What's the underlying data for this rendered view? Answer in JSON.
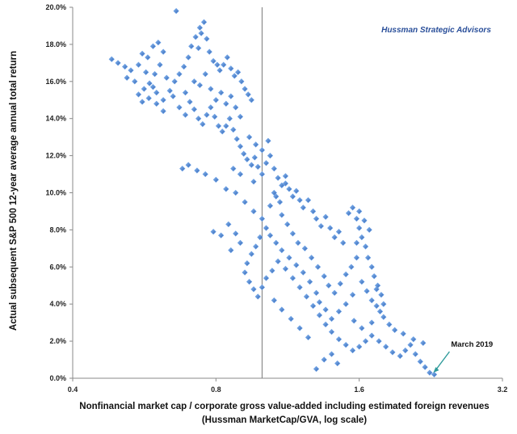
{
  "chart_data": {
    "type": "scatter",
    "title": "",
    "watermark": "Hussman Strategic Advisors",
    "xlabel": "Nonfinancial market cap / corporate gross value-added including estimated foreign revenues",
    "xlabel_line2": "(Hussman MarketCap/GVA, log scale)",
    "ylabel": "Actual subsequent S&P 500 12-year average annual total return",
    "x_scale": "log2",
    "xlim": [
      0.4,
      3.2
    ],
    "ylim": [
      0,
      20
    ],
    "x_ticks": [
      0.4,
      0.8,
      1.6,
      3.2
    ],
    "x_tick_labels": [
      "0.4",
      "0.8",
      "1.6",
      "3.2"
    ],
    "y_ticks": [
      0,
      2,
      4,
      6,
      8,
      10,
      12,
      14,
      16,
      18,
      20
    ],
    "y_tick_labels": [
      "0.0%",
      "2.0%",
      "4.0%",
      "6.0%",
      "8.0%",
      "10.0%",
      "12.0%",
      "14.0%",
      "16.0%",
      "18.0%",
      "20.0%"
    ],
    "reference_line_x": 1.0,
    "grid": false,
    "marker_color": "#3a74c8",
    "marker_edge_color": "#6aa0e6",
    "annotation": {
      "text": "March 2019",
      "x": 2.29,
      "y": 0.3
    },
    "series": [
      {
        "points": [
          [
            0.483,
            17.2
          ],
          [
            0.498,
            17.0
          ],
          [
            0.515,
            16.8
          ],
          [
            0.53,
            16.6
          ],
          [
            0.55,
            16.9
          ],
          [
            0.56,
            17.5
          ],
          [
            0.575,
            17.3
          ],
          [
            0.59,
            17.9
          ],
          [
            0.605,
            18.1
          ],
          [
            0.62,
            17.6
          ],
          [
            0.61,
            16.9
          ],
          [
            0.595,
            16.4
          ],
          [
            0.58,
            15.9
          ],
          [
            0.565,
            15.6
          ],
          [
            0.55,
            15.3
          ],
          [
            0.56,
            14.9
          ],
          [
            0.578,
            15.1
          ],
          [
            0.6,
            14.8
          ],
          [
            0.62,
            15.0
          ],
          [
            0.64,
            15.5
          ],
          [
            0.655,
            16.0
          ],
          [
            0.67,
            16.4
          ],
          [
            0.685,
            16.8
          ],
          [
            0.7,
            17.3
          ],
          [
            0.71,
            17.9
          ],
          [
            0.725,
            18.4
          ],
          [
            0.74,
            18.9
          ],
          [
            0.755,
            19.2
          ],
          [
            0.745,
            18.6
          ],
          [
            0.735,
            17.8
          ],
          [
            0.765,
            18.3
          ],
          [
            0.775,
            17.6
          ],
          [
            0.79,
            17.1
          ],
          [
            0.805,
            16.9
          ],
          [
            0.815,
            16.6
          ],
          [
            0.83,
            16.9
          ],
          [
            0.845,
            17.3
          ],
          [
            0.86,
            16.7
          ],
          [
            0.875,
            16.3
          ],
          [
            0.89,
            16.5
          ],
          [
            0.905,
            16.0
          ],
          [
            0.92,
            15.6
          ],
          [
            0.935,
            15.3
          ],
          [
            0.95,
            15.0
          ],
          [
            0.66,
            19.8
          ],
          [
            0.69,
            15.4
          ],
          [
            0.705,
            14.9
          ],
          [
            0.72,
            14.5
          ],
          [
            0.735,
            14.0
          ],
          [
            0.75,
            13.7
          ],
          [
            0.765,
            14.2
          ],
          [
            0.78,
            14.6
          ],
          [
            0.795,
            14.1
          ],
          [
            0.81,
            13.6
          ],
          [
            0.825,
            13.3
          ],
          [
            0.84,
            13.6
          ],
          [
            0.855,
            14.0
          ],
          [
            0.87,
            13.4
          ],
          [
            0.885,
            12.9
          ],
          [
            0.9,
            12.5
          ],
          [
            0.915,
            12.1
          ],
          [
            0.93,
            11.8
          ],
          [
            0.95,
            11.5
          ],
          [
            0.965,
            11.9
          ],
          [
            0.98,
            11.4
          ],
          [
            1.0,
            11.0
          ],
          [
            1.02,
            11.6
          ],
          [
            1.04,
            12.0
          ],
          [
            1.06,
            11.3
          ],
          [
            1.08,
            10.8
          ],
          [
            1.1,
            10.4
          ],
          [
            1.12,
            10.9
          ],
          [
            1.14,
            10.2
          ],
          [
            1.16,
            9.8
          ],
          [
            1.18,
            10.1
          ],
          [
            1.2,
            9.6
          ],
          [
            1.22,
            9.2
          ],
          [
            1.25,
            9.6
          ],
          [
            1.28,
            9.0
          ],
          [
            1.3,
            8.6
          ],
          [
            1.33,
            8.2
          ],
          [
            1.36,
            8.7
          ],
          [
            1.39,
            8.1
          ],
          [
            1.42,
            7.6
          ],
          [
            1.45,
            7.9
          ],
          [
            1.48,
            7.3
          ],
          [
            1.52,
            8.9
          ],
          [
            1.55,
            9.2
          ],
          [
            1.58,
            8.6
          ],
          [
            1.6,
            8.1
          ],
          [
            1.62,
            7.6
          ],
          [
            1.65,
            7.1
          ],
          [
            1.67,
            6.5
          ],
          [
            1.7,
            6.0
          ],
          [
            1.72,
            5.5
          ],
          [
            1.75,
            5.0
          ],
          [
            1.78,
            4.5
          ],
          [
            1.8,
            4.0
          ],
          [
            1.77,
            3.6
          ],
          [
            1.74,
            3.9
          ],
          [
            1.55,
            4.5
          ],
          [
            1.5,
            4.0
          ],
          [
            1.45,
            3.6
          ],
          [
            1.4,
            3.2
          ],
          [
            1.36,
            3.7
          ],
          [
            1.32,
            4.1
          ],
          [
            1.3,
            4.6
          ],
          [
            1.26,
            5.2
          ],
          [
            1.22,
            5.7
          ],
          [
            1.18,
            6.1
          ],
          [
            1.14,
            6.5
          ],
          [
            1.1,
            6.9
          ],
          [
            1.07,
            7.3
          ],
          [
            1.04,
            7.7
          ],
          [
            1.02,
            8.1
          ],
          [
            0.99,
            7.6
          ],
          [
            0.97,
            7.1
          ],
          [
            0.95,
            6.7
          ],
          [
            0.93,
            6.2
          ],
          [
            0.92,
            5.7
          ],
          [
            0.94,
            5.2
          ],
          [
            0.96,
            4.8
          ],
          [
            0.98,
            4.4
          ],
          [
            1.0,
            4.9
          ],
          [
            1.02,
            5.4
          ],
          [
            1.05,
            5.8
          ],
          [
            1.08,
            6.3
          ],
          [
            1.12,
            5.9
          ],
          [
            1.16,
            5.4
          ],
          [
            1.2,
            4.9
          ],
          [
            1.24,
            4.4
          ],
          [
            1.28,
            3.9
          ],
          [
            1.32,
            3.4
          ],
          [
            1.36,
            2.9
          ],
          [
            1.4,
            2.5
          ],
          [
            1.45,
            2.1
          ],
          [
            1.5,
            1.8
          ],
          [
            1.55,
            1.5
          ],
          [
            1.6,
            1.7
          ],
          [
            1.65,
            2.0
          ],
          [
            1.7,
            2.3
          ],
          [
            1.76,
            2.0
          ],
          [
            1.82,
            1.7
          ],
          [
            1.88,
            1.4
          ],
          [
            1.95,
            1.2
          ],
          [
            2.0,
            1.5
          ],
          [
            2.05,
            1.8
          ],
          [
            2.1,
            1.3
          ],
          [
            2.15,
            0.9
          ],
          [
            2.2,
            0.6
          ],
          [
            2.25,
            0.3
          ],
          [
            2.3,
            0.2
          ],
          [
            2.18,
            1.9
          ],
          [
            2.08,
            2.1
          ],
          [
            1.98,
            2.4
          ],
          [
            1.9,
            2.6
          ],
          [
            1.85,
            2.9
          ],
          [
            1.8,
            3.3
          ],
          [
            1.7,
            3.0
          ],
          [
            1.62,
            2.7
          ],
          [
            1.56,
            3.1
          ],
          [
            1.3,
            0.5
          ],
          [
            1.35,
            1.0
          ],
          [
            1.4,
            1.3
          ],
          [
            1.44,
            0.8
          ],
          [
            1.25,
            2.2
          ],
          [
            1.2,
            2.7
          ],
          [
            1.15,
            3.2
          ],
          [
            1.1,
            3.7
          ],
          [
            1.06,
            4.2
          ],
          [
            0.88,
            7.8
          ],
          [
            0.85,
            8.3
          ],
          [
            0.82,
            7.7
          ],
          [
            0.79,
            7.9
          ],
          [
            0.86,
            6.9
          ],
          [
            0.9,
            7.3
          ],
          [
            0.7,
            11.5
          ],
          [
            0.73,
            11.2
          ],
          [
            0.76,
            11.0
          ],
          [
            0.8,
            10.7
          ],
          [
            0.68,
            11.3
          ],
          [
            0.84,
            10.2
          ],
          [
            0.88,
            10.0
          ],
          [
            0.92,
            9.5
          ],
          [
            0.96,
            9.0
          ],
          [
            1.0,
            8.6
          ],
          [
            1.04,
            9.3
          ],
          [
            1.07,
            9.8
          ],
          [
            1.1,
            8.8
          ],
          [
            1.13,
            8.3
          ],
          [
            1.16,
            7.8
          ],
          [
            1.19,
            7.3
          ],
          [
            1.23,
            7.0
          ],
          [
            1.27,
            6.5
          ],
          [
            1.31,
            6.0
          ],
          [
            1.35,
            5.5
          ],
          [
            1.38,
            5.0
          ],
          [
            1.42,
            4.6
          ],
          [
            1.46,
            5.1
          ],
          [
            1.5,
            5.6
          ],
          [
            1.54,
            6.0
          ],
          [
            1.58,
            6.5
          ],
          [
            1.62,
            5.2
          ],
          [
            1.66,
            4.7
          ],
          [
            1.7,
            4.2
          ],
          [
            1.74,
            4.8
          ],
          [
            1.6,
            9.0
          ],
          [
            1.64,
            8.5
          ],
          [
            1.68,
            8.0
          ],
          [
            1.58,
            7.3
          ],
          [
            0.52,
            16.2
          ],
          [
            0.54,
            16.0
          ],
          [
            0.57,
            16.5
          ],
          [
            0.59,
            15.7
          ],
          [
            0.63,
            16.2
          ],
          [
            0.65,
            15.2
          ],
          [
            0.67,
            14.6
          ],
          [
            0.69,
            14.2
          ],
          [
            0.62,
            14.4
          ],
          [
            0.6,
            15.4
          ],
          [
            0.78,
            15.6
          ],
          [
            0.8,
            15.0
          ],
          [
            0.82,
            15.4
          ],
          [
            0.84,
            14.8
          ],
          [
            0.86,
            15.2
          ],
          [
            0.88,
            14.6
          ],
          [
            0.9,
            14.1
          ],
          [
            0.76,
            16.4
          ],
          [
            0.72,
            16.0
          ],
          [
            0.74,
            15.8
          ],
          [
            0.94,
            13.0
          ],
          [
            0.97,
            12.6
          ],
          [
            1.0,
            12.3
          ],
          [
            1.03,
            12.8
          ],
          [
            1.06,
            10.0
          ],
          [
            1.09,
            9.5
          ],
          [
            1.12,
            10.5
          ],
          [
            0.9,
            11.0
          ],
          [
            0.87,
            11.3
          ],
          [
            0.96,
            10.6
          ]
        ]
      }
    ]
  }
}
